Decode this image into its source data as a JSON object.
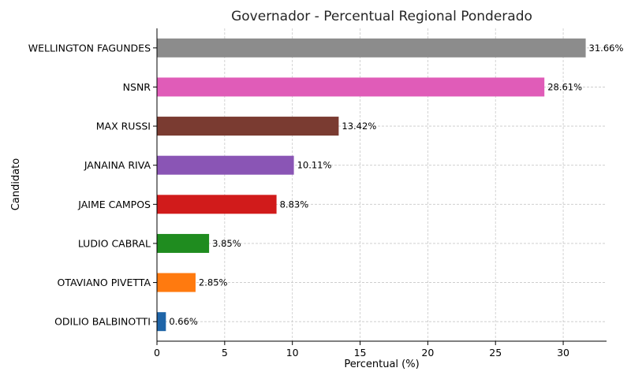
{
  "chart_data": {
    "type": "bar",
    "orientation": "horizontal",
    "title": "Governador - Percentual Regional Ponderado",
    "xlabel": "Percentual (%)",
    "ylabel": "Candidato",
    "xlim": [
      0,
      33.2
    ],
    "xticks": [
      0,
      5,
      10,
      15,
      20,
      25,
      30
    ],
    "grid": true,
    "categories": [
      "WELLINGTON FAGUNDES",
      "NSNR",
      "MAX RUSSI",
      "JANAINA RIVA",
      "JAIME CAMPOS",
      "LUDIO CABRAL",
      "OTAVIANO PIVETTA",
      "ODILIO BALBINOTTI"
    ],
    "values": [
      31.66,
      28.61,
      13.42,
      10.11,
      8.83,
      3.85,
      2.85,
      0.66
    ],
    "value_labels": [
      "31.66%",
      "28.61%",
      "13.42%",
      "10.11%",
      "8.83%",
      "3.85%",
      "2.85%",
      "0.66%"
    ],
    "colors": [
      "#8c8c8c",
      "#e05cb8",
      "#7a3b31",
      "#8a55b5",
      "#d11b1b",
      "#1f8c1f",
      "#ff7a0f",
      "#1f65a8"
    ]
  }
}
